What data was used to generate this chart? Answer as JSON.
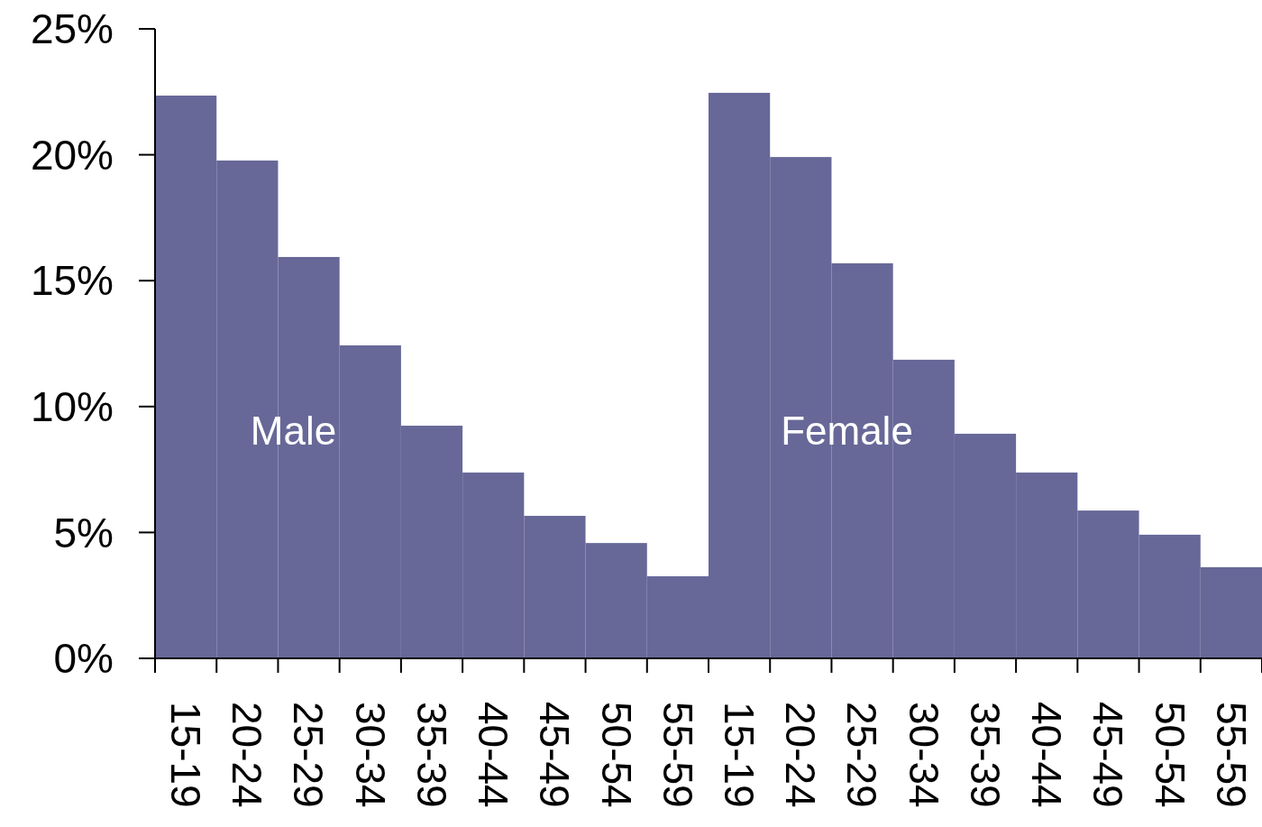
{
  "chart_data": {
    "type": "bar",
    "categories": [
      "15-19",
      "20-24",
      "25-29",
      "30-34",
      "35-39",
      "40-44",
      "45-49",
      "50-54",
      "55-59",
      "15-19",
      "20-24",
      "25-29",
      "30-34",
      "35-39",
      "40-44",
      "45-49",
      "50-54",
      "55-59"
    ],
    "values": [
      22.35,
      19.77,
      15.94,
      12.43,
      9.24,
      7.38,
      5.66,
      4.58,
      3.26,
      22.46,
      19.91,
      15.69,
      11.86,
      8.92,
      7.38,
      5.87,
      4.91,
      3.62
    ],
    "color": "#676898",
    "ylim": [
      0,
      25
    ],
    "yticks": [
      {
        "value": 0,
        "label": "0%"
      },
      {
        "value": 5,
        "label": "5%"
      },
      {
        "value": 10,
        "label": "10%"
      },
      {
        "value": 15,
        "label": "15%"
      },
      {
        "value": 20,
        "label": "20%"
      },
      {
        "value": 25,
        "label": "25%"
      }
    ],
    "annotations": [
      "Male",
      "Female"
    ],
    "grid": false
  }
}
